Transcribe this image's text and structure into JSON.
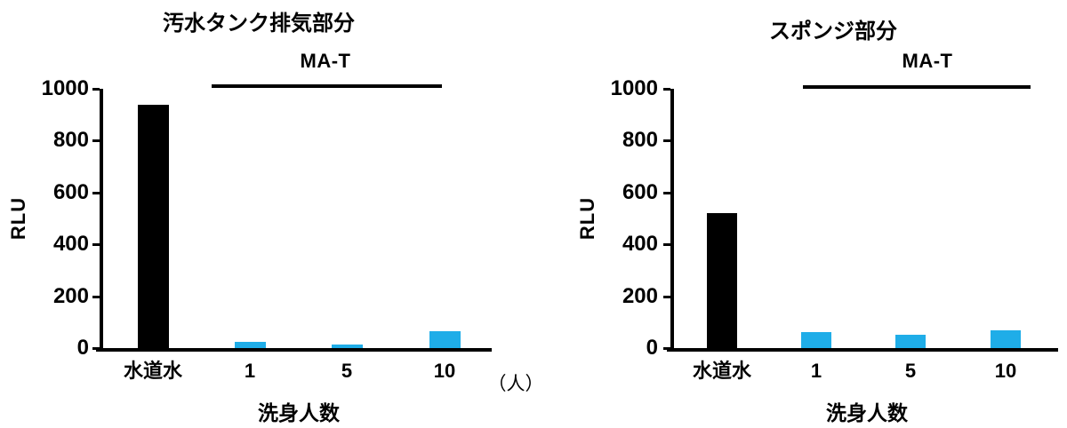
{
  "figure": {
    "background": "#ffffff",
    "text_color": "#000000"
  },
  "chart_data": [
    {
      "type": "bar",
      "title": "汚水タンク排気部分",
      "group_label": "MA-T",
      "ylabel": "RLU",
      "xlabel": "洗身人数",
      "unit_label": "（人）",
      "categories": [
        "水道水",
        "1",
        "5",
        "10"
      ],
      "values": [
        940,
        25,
        12,
        65
      ],
      "bar_colors": [
        "#000000",
        "#1FADE8",
        "#1FADE8",
        "#1FADE8"
      ],
      "ylim": [
        0,
        1000
      ],
      "yticks": [
        0,
        200,
        400,
        600,
        800,
        1000
      ],
      "grid": false,
      "legend": "none",
      "group_bracket_over": [
        "1",
        "5",
        "10"
      ]
    },
    {
      "type": "bar",
      "title": "スポンジ部分",
      "group_label": "MA-T",
      "ylabel": "RLU",
      "xlabel": "洗身人数",
      "categories": [
        "水道水",
        "1",
        "5",
        "10"
      ],
      "values": [
        520,
        60,
        52,
        68
      ],
      "bar_colors": [
        "#000000",
        "#1FADE8",
        "#1FADE8",
        "#1FADE8"
      ],
      "ylim": [
        0,
        1000
      ],
      "yticks": [
        0,
        200,
        400,
        600,
        800,
        1000
      ],
      "grid": false,
      "legend": "none",
      "group_bracket_over": [
        "1",
        "5",
        "10"
      ]
    }
  ]
}
